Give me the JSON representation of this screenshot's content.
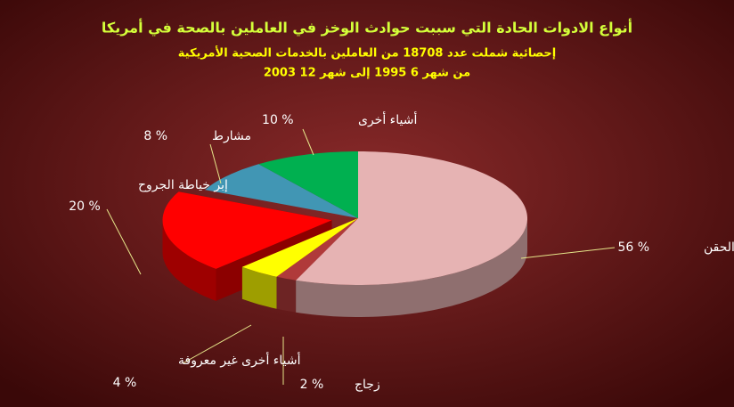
{
  "chart_data": {
    "type": "pie",
    "title": "أنواع الادوات الحادة التي سببت حوادث الوخز في العاملين بالصحة في أمريكا",
    "subtitle": [
      "إحصائية شملت عدد 18708 من العاملين بالخدمات الصحية الأمريكية",
      "من شهر 6 1995 إلى شهر 12 2003"
    ],
    "categories": [
      "إبر الحقن",
      "زجاج",
      "أشياء أخرى غير معروفة",
      "إبر خياطة الجروح",
      "مشارط",
      "أشياء أخرى"
    ],
    "values": [
      56,
      2,
      4,
      20,
      8,
      10
    ],
    "value_labels": [
      "56 %",
      "2 %",
      "4 %",
      "20 %",
      "8 %",
      "10 %"
    ],
    "colors": [
      "#e6b3b3",
      "#b03a3a",
      "#ffff00",
      "#ff0000",
      "#4196b4",
      "#00b050"
    ]
  }
}
